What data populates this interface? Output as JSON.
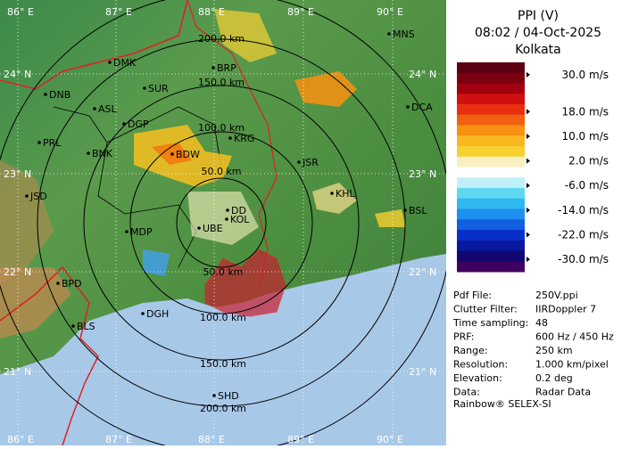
{
  "header": {
    "title": "PPI (V)",
    "datetime": "08:02 / 04-Oct-2025",
    "station": "Kolkata"
  },
  "colorbar": {
    "ticks": [
      {
        "value": 30,
        "label": "30.0 m/s"
      },
      {
        "value": 18,
        "label": "18.0 m/s"
      },
      {
        "value": 10,
        "label": "10.0 m/s"
      },
      {
        "value": 2,
        "label": "2.0 m/s"
      },
      {
        "value": -6,
        "label": "-6.0 m/s"
      },
      {
        "value": -14,
        "label": "-14.0 m/s"
      },
      {
        "value": -22,
        "label": "-22.0 m/s"
      },
      {
        "value": -30,
        "label": "-30.0 m/s"
      }
    ],
    "range": [
      -34,
      34
    ],
    "colors": [
      "#5a0010",
      "#7a0010",
      "#a00010",
      "#d01010",
      "#e83010",
      "#f06010",
      "#f89010",
      "#f8b820",
      "#f8d030",
      "#f8f0c0",
      "#ffffff",
      "#c0f0f8",
      "#60d8f0",
      "#30b8f0",
      "#2090f0",
      "#1060e0",
      "#0830c8",
      "#0818a0",
      "#100870",
      "#400060"
    ]
  },
  "info": [
    [
      "Pdf File:",
      "250V.ppi"
    ],
    [
      "Clutter Filter:",
      "IIRDoppler 7"
    ],
    [
      "Time sampling:",
      "48"
    ],
    [
      "PRF:",
      "600 Hz / 450 Hz"
    ],
    [
      "Range:",
      "250 km"
    ],
    [
      "Resolution:",
      "1.000 km/pixel"
    ],
    [
      "Elevation:",
      "0.2 deg"
    ],
    [
      "Data:",
      "Radar Data"
    ]
  ],
  "footer": "Rainbow® SELEX-SI",
  "map": {
    "longitudes": [
      "86° E",
      "87° E",
      "88° E",
      "89° E",
      "90° E"
    ],
    "latitudes": [
      "24° N",
      "23° N",
      "22° N",
      "21° N"
    ],
    "rings_north": [
      "200.0 km",
      "150.0 km",
      "100.0 km",
      "50.0 km"
    ],
    "rings_south": [
      "50.0 km",
      "100.0 km",
      "150.0 km",
      "200.0 km"
    ],
    "cities": [
      "MNS",
      "DMK",
      "BRP",
      "SUR",
      "DNB",
      "ASL",
      "DGP",
      "DCA",
      "KRG",
      "PRL",
      "BNK",
      "BDW",
      "JSR",
      "KHL",
      "JSD",
      "DD",
      "BSL",
      "KOL",
      "UBE",
      "MDP",
      "BPD",
      "DGH",
      "BLS",
      "SHD"
    ]
  }
}
